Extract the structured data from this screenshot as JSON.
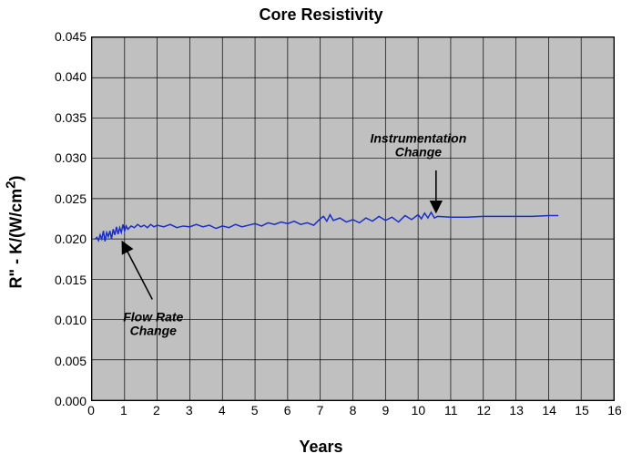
{
  "chart": {
    "type": "line",
    "title": "Core Resistivity",
    "title_fontsize": 18,
    "xlabel": "Years",
    "ylabel_html": "R\" - K/(W/cm<sup>2</sup>)",
    "label_fontsize": 18,
    "background_color": "#ffffff",
    "plot_background_color": "#c0c0c0",
    "grid_color": "#000000",
    "xlim": [
      0,
      16
    ],
    "ylim": [
      0.0,
      0.045
    ],
    "xticks": [
      0,
      1,
      2,
      3,
      4,
      5,
      6,
      7,
      8,
      9,
      10,
      11,
      12,
      13,
      14,
      15,
      16
    ],
    "yticks": [
      0.0,
      0.005,
      0.01,
      0.015,
      0.02,
      0.025,
      0.03,
      0.035,
      0.04,
      0.045
    ],
    "ytick_labels": [
      "0.000",
      "0.005",
      "0.010",
      "0.015",
      "0.020",
      "0.025",
      "0.030",
      "0.035",
      "0.040",
      "0.045"
    ],
    "tick_fontsize": 14,
    "series": [
      {
        "name": "core-resistivity",
        "color": "#1a2ec9",
        "line_width": 1.5,
        "x": [
          0.1,
          0.15,
          0.2,
          0.25,
          0.3,
          0.35,
          0.4,
          0.45,
          0.5,
          0.55,
          0.6,
          0.65,
          0.7,
          0.75,
          0.8,
          0.85,
          0.9,
          0.95,
          1.0,
          1.05,
          1.1,
          1.2,
          1.3,
          1.4,
          1.5,
          1.6,
          1.7,
          1.8,
          1.9,
          2.0,
          2.2,
          2.4,
          2.6,
          2.8,
          3.0,
          3.2,
          3.4,
          3.6,
          3.8,
          4.0,
          4.2,
          4.4,
          4.6,
          4.8,
          5.0,
          5.2,
          5.4,
          5.6,
          5.8,
          6.0,
          6.2,
          6.4,
          6.6,
          6.8,
          7.0,
          7.1,
          7.2,
          7.3,
          7.4,
          7.6,
          7.8,
          8.0,
          8.2,
          8.4,
          8.6,
          8.8,
          9.0,
          9.2,
          9.4,
          9.6,
          9.8,
          10.0,
          10.1,
          10.2,
          10.3,
          10.4,
          10.5,
          10.6,
          11.0,
          11.5,
          12.0,
          12.5,
          13.0,
          13.5,
          14.0,
          14.3
        ],
        "y": [
          0.02,
          0.0202,
          0.0198,
          0.0205,
          0.02,
          0.021,
          0.0197,
          0.0208,
          0.0203,
          0.021,
          0.02,
          0.0212,
          0.0205,
          0.0215,
          0.0206,
          0.0214,
          0.0208,
          0.0218,
          0.021,
          0.0216,
          0.0212,
          0.0216,
          0.0214,
          0.0218,
          0.0215,
          0.0217,
          0.0214,
          0.0218,
          0.0215,
          0.0217,
          0.0215,
          0.0218,
          0.0214,
          0.0216,
          0.0215,
          0.0218,
          0.0215,
          0.0217,
          0.0213,
          0.0216,
          0.0214,
          0.0218,
          0.0215,
          0.0217,
          0.0219,
          0.0216,
          0.022,
          0.0218,
          0.0221,
          0.0219,
          0.0222,
          0.0218,
          0.022,
          0.0217,
          0.0225,
          0.0228,
          0.0222,
          0.023,
          0.0223,
          0.0226,
          0.0221,
          0.0224,
          0.022,
          0.0226,
          0.0222,
          0.0228,
          0.0223,
          0.0227,
          0.0221,
          0.0229,
          0.0224,
          0.023,
          0.0225,
          0.0232,
          0.0226,
          0.0233,
          0.0226,
          0.0228,
          0.0227,
          0.0227,
          0.0228,
          0.0228,
          0.0228,
          0.0228,
          0.0229,
          0.0229
        ]
      }
    ],
    "annotations": [
      {
        "id": "flow-rate-change",
        "text": "Flow Rate\nChange",
        "text_xy_years_k": [
          1.9,
          0.0095
        ],
        "arrow_from_xy": [
          1.85,
          0.0125
        ],
        "arrow_to_xy": [
          0.95,
          0.0195
        ]
      },
      {
        "id": "instrumentation-change",
        "text": "Instrumentation\nChange",
        "text_xy_years_k": [
          10.0,
          0.0315
        ],
        "arrow_from_xy": [
          10.55,
          0.0285
        ],
        "arrow_to_xy": [
          10.55,
          0.0235
        ]
      }
    ]
  }
}
